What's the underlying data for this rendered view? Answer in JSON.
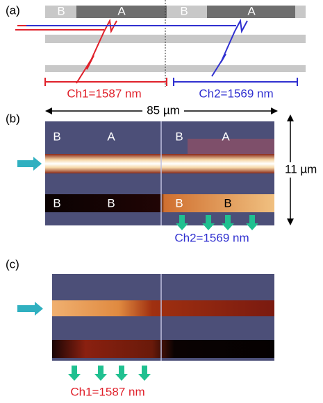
{
  "panel_a": {
    "label": "(a)",
    "segments": [
      "B",
      "A",
      "B",
      "A"
    ],
    "ch1": "Ch1=1587 nm",
    "ch2": "Ch2=1569 nm"
  },
  "panel_b": {
    "label": "(b)",
    "width": "85 µm",
    "height": "11 µm",
    "top_labels": [
      "B",
      "A",
      "B",
      "A"
    ],
    "bottom_labels": [
      "B",
      "B",
      "B",
      "B"
    ],
    "channel": "Ch2=1569 nm"
  },
  "panel_c": {
    "label": "(c)",
    "channel": "Ch1=1587 nm"
  }
}
